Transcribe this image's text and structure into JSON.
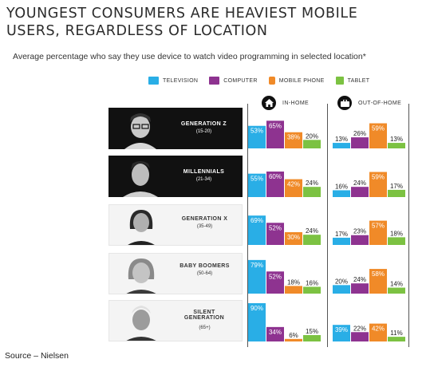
{
  "title_line1": "YOUNGEST CONSUMERS ARE HEAVIEST MOBILE",
  "title_line2": "USERS, REGARDLESS OF LOCATION",
  "subtitle": "Average percentage who say they use device to watch video programming in selected location*",
  "source": "Source – Nielsen",
  "colors": {
    "television": "#29aee6",
    "computer": "#8e3390",
    "mobile_phone": "#f08a28",
    "tablet": "#7cc242",
    "label_dark": "#111111"
  },
  "legend": [
    {
      "label": "TELEVISION",
      "icon": "tv-icon"
    },
    {
      "label": "COMPUTER",
      "icon": "laptop-icon"
    },
    {
      "label": "MOBILE PHONE",
      "icon": "phone-icon"
    },
    {
      "label": "TABLET",
      "icon": "tablet-icon"
    }
  ],
  "panels": [
    {
      "label": "IN-HOME",
      "icon": "home-icon"
    },
    {
      "label": "OUT-OF-HOME",
      "icon": "briefcase-icon"
    }
  ],
  "generations": [
    {
      "name": "GENERATION Z",
      "range": "(15-20)"
    },
    {
      "name": "MILLENNIALS",
      "range": "(21-34)"
    },
    {
      "name": "GENERATION X",
      "range": "(35-49)"
    },
    {
      "name": "BABY BOOMERS",
      "range": "(50-64)"
    },
    {
      "name": "SILENT GENERATION",
      "range": "(65+)"
    }
  ],
  "chart_data": {
    "type": "bar",
    "series": [
      {
        "name": "TELEVISION",
        "in_home": [
          53,
          55,
          69,
          79,
          90
        ],
        "out_of_home": [
          13,
          16,
          17,
          20,
          39
        ]
      },
      {
        "name": "COMPUTER",
        "in_home": [
          65,
          60,
          52,
          52,
          34
        ],
        "out_of_home": [
          26,
          24,
          23,
          24,
          22
        ]
      },
      {
        "name": "MOBILE PHONE",
        "in_home": [
          38,
          42,
          30,
          18,
          6
        ],
        "out_of_home": [
          59,
          59,
          57,
          58,
          42
        ]
      },
      {
        "name": "TABLET",
        "in_home": [
          20,
          24,
          24,
          16,
          15
        ],
        "out_of_home": [
          13,
          17,
          18,
          14,
          11
        ]
      }
    ],
    "categories": [
      "GENERATION Z",
      "MILLENNIALS",
      "GENERATION X",
      "BABY BOOMERS",
      "SILENT GENERATION"
    ],
    "value_suffix": "%",
    "ylim": [
      0,
      90
    ]
  }
}
